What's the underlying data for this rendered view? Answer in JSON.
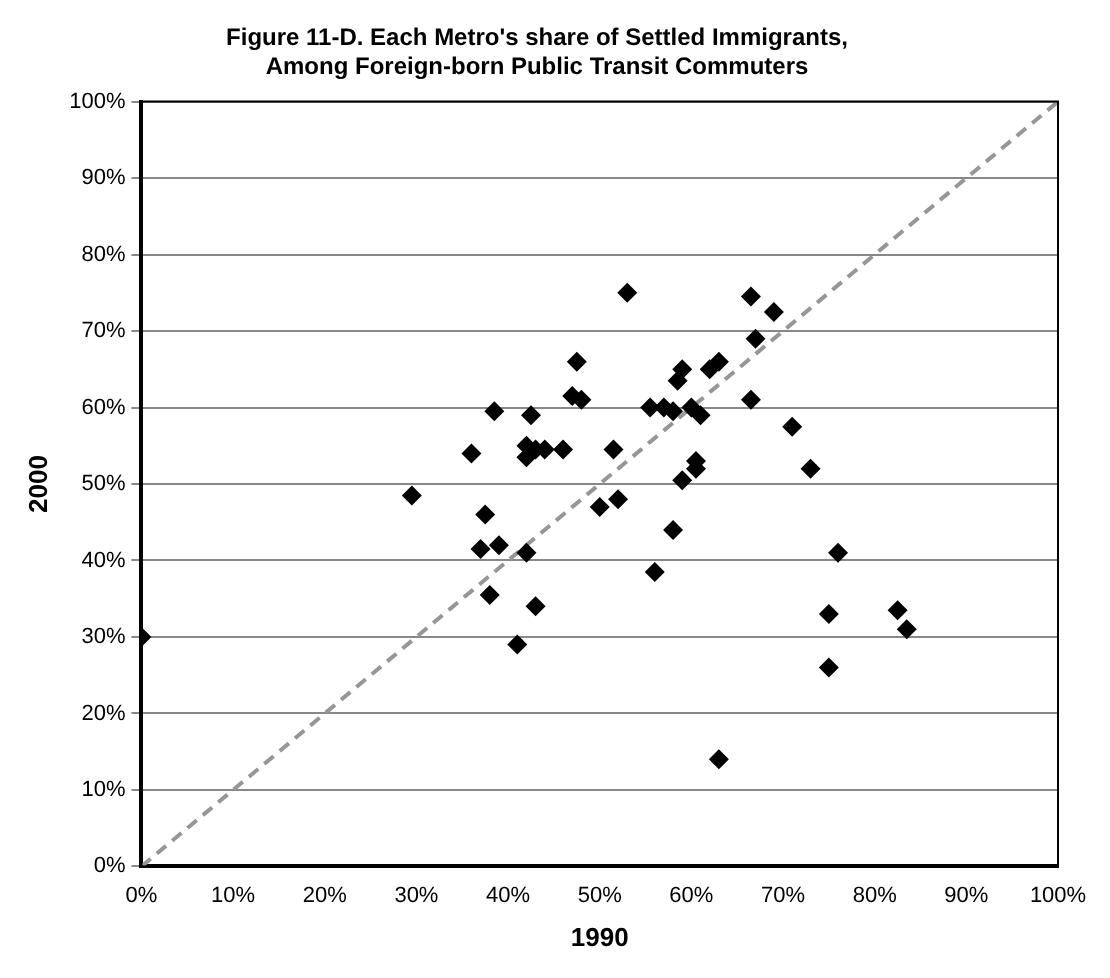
{
  "chart_data": {
    "type": "scatter",
    "title": "Figure 11-D. Each Metro's share of Settled Immigrants,\nAmong Foreign-born Public Transit Commuters",
    "xlabel": "1990",
    "ylabel": "2000",
    "xlim": [
      0,
      100
    ],
    "ylim": [
      0,
      100
    ],
    "xticks": [
      {
        "value": 0,
        "label": "0%"
      },
      {
        "value": 10,
        "label": "10%"
      },
      {
        "value": 20,
        "label": "20%"
      },
      {
        "value": 30,
        "label": "30%"
      },
      {
        "value": 40,
        "label": "40%"
      },
      {
        "value": 50,
        "label": "50%"
      },
      {
        "value": 60,
        "label": "60%"
      },
      {
        "value": 70,
        "label": "70%"
      },
      {
        "value": 80,
        "label": "80%"
      },
      {
        "value": 90,
        "label": "90%"
      },
      {
        "value": 100,
        "label": "100%"
      }
    ],
    "yticks": [
      {
        "value": 0,
        "label": "0%"
      },
      {
        "value": 10,
        "label": "10%"
      },
      {
        "value": 20,
        "label": "20%"
      },
      {
        "value": 30,
        "label": "30%"
      },
      {
        "value": 40,
        "label": "40%"
      },
      {
        "value": 50,
        "label": "50%"
      },
      {
        "value": 60,
        "label": "60%"
      },
      {
        "value": 70,
        "label": "70%"
      },
      {
        "value": 80,
        "label": "80%"
      },
      {
        "value": 90,
        "label": "90%"
      },
      {
        "value": 100,
        "label": "100%"
      }
    ],
    "grid": "y",
    "legend": false,
    "marker": "diamond",
    "series": [
      {
        "type": "scatter",
        "color": "#000000",
        "x": [
          0,
          29.5,
          36,
          37,
          37.5,
          38,
          38.5,
          39,
          41,
          42,
          42,
          42,
          42.5,
          43,
          43,
          44,
          46,
          47,
          47.5,
          48,
          50,
          51.5,
          52,
          53,
          55.5,
          56,
          57,
          58,
          58,
          58.5,
          59,
          59,
          60,
          60.5,
          60.5,
          61,
          62,
          63,
          63,
          66.5,
          66.5,
          67,
          69,
          71,
          73,
          75,
          75,
          76,
          82.5,
          83.5
        ],
        "values": [
          30,
          48.5,
          54,
          41.5,
          46,
          35.5,
          59.5,
          42,
          29,
          41,
          53.5,
          55,
          59,
          34,
          54.5,
          54.5,
          54.5,
          61.5,
          66,
          61,
          47,
          54.5,
          48,
          75,
          60,
          38.5,
          60,
          59.5,
          44,
          63.5,
          50.5,
          65,
          60,
          52,
          53,
          59,
          65,
          66,
          14,
          74.5,
          61,
          69,
          72.5,
          57.5,
          52,
          33,
          26,
          41,
          33.5,
          31
        ]
      },
      {
        "type": "line",
        "color": "#969696",
        "line_style": "dashed",
        "marker": "none",
        "x": [
          0,
          100
        ],
        "values": [
          0,
          100
        ]
      }
    ]
  }
}
